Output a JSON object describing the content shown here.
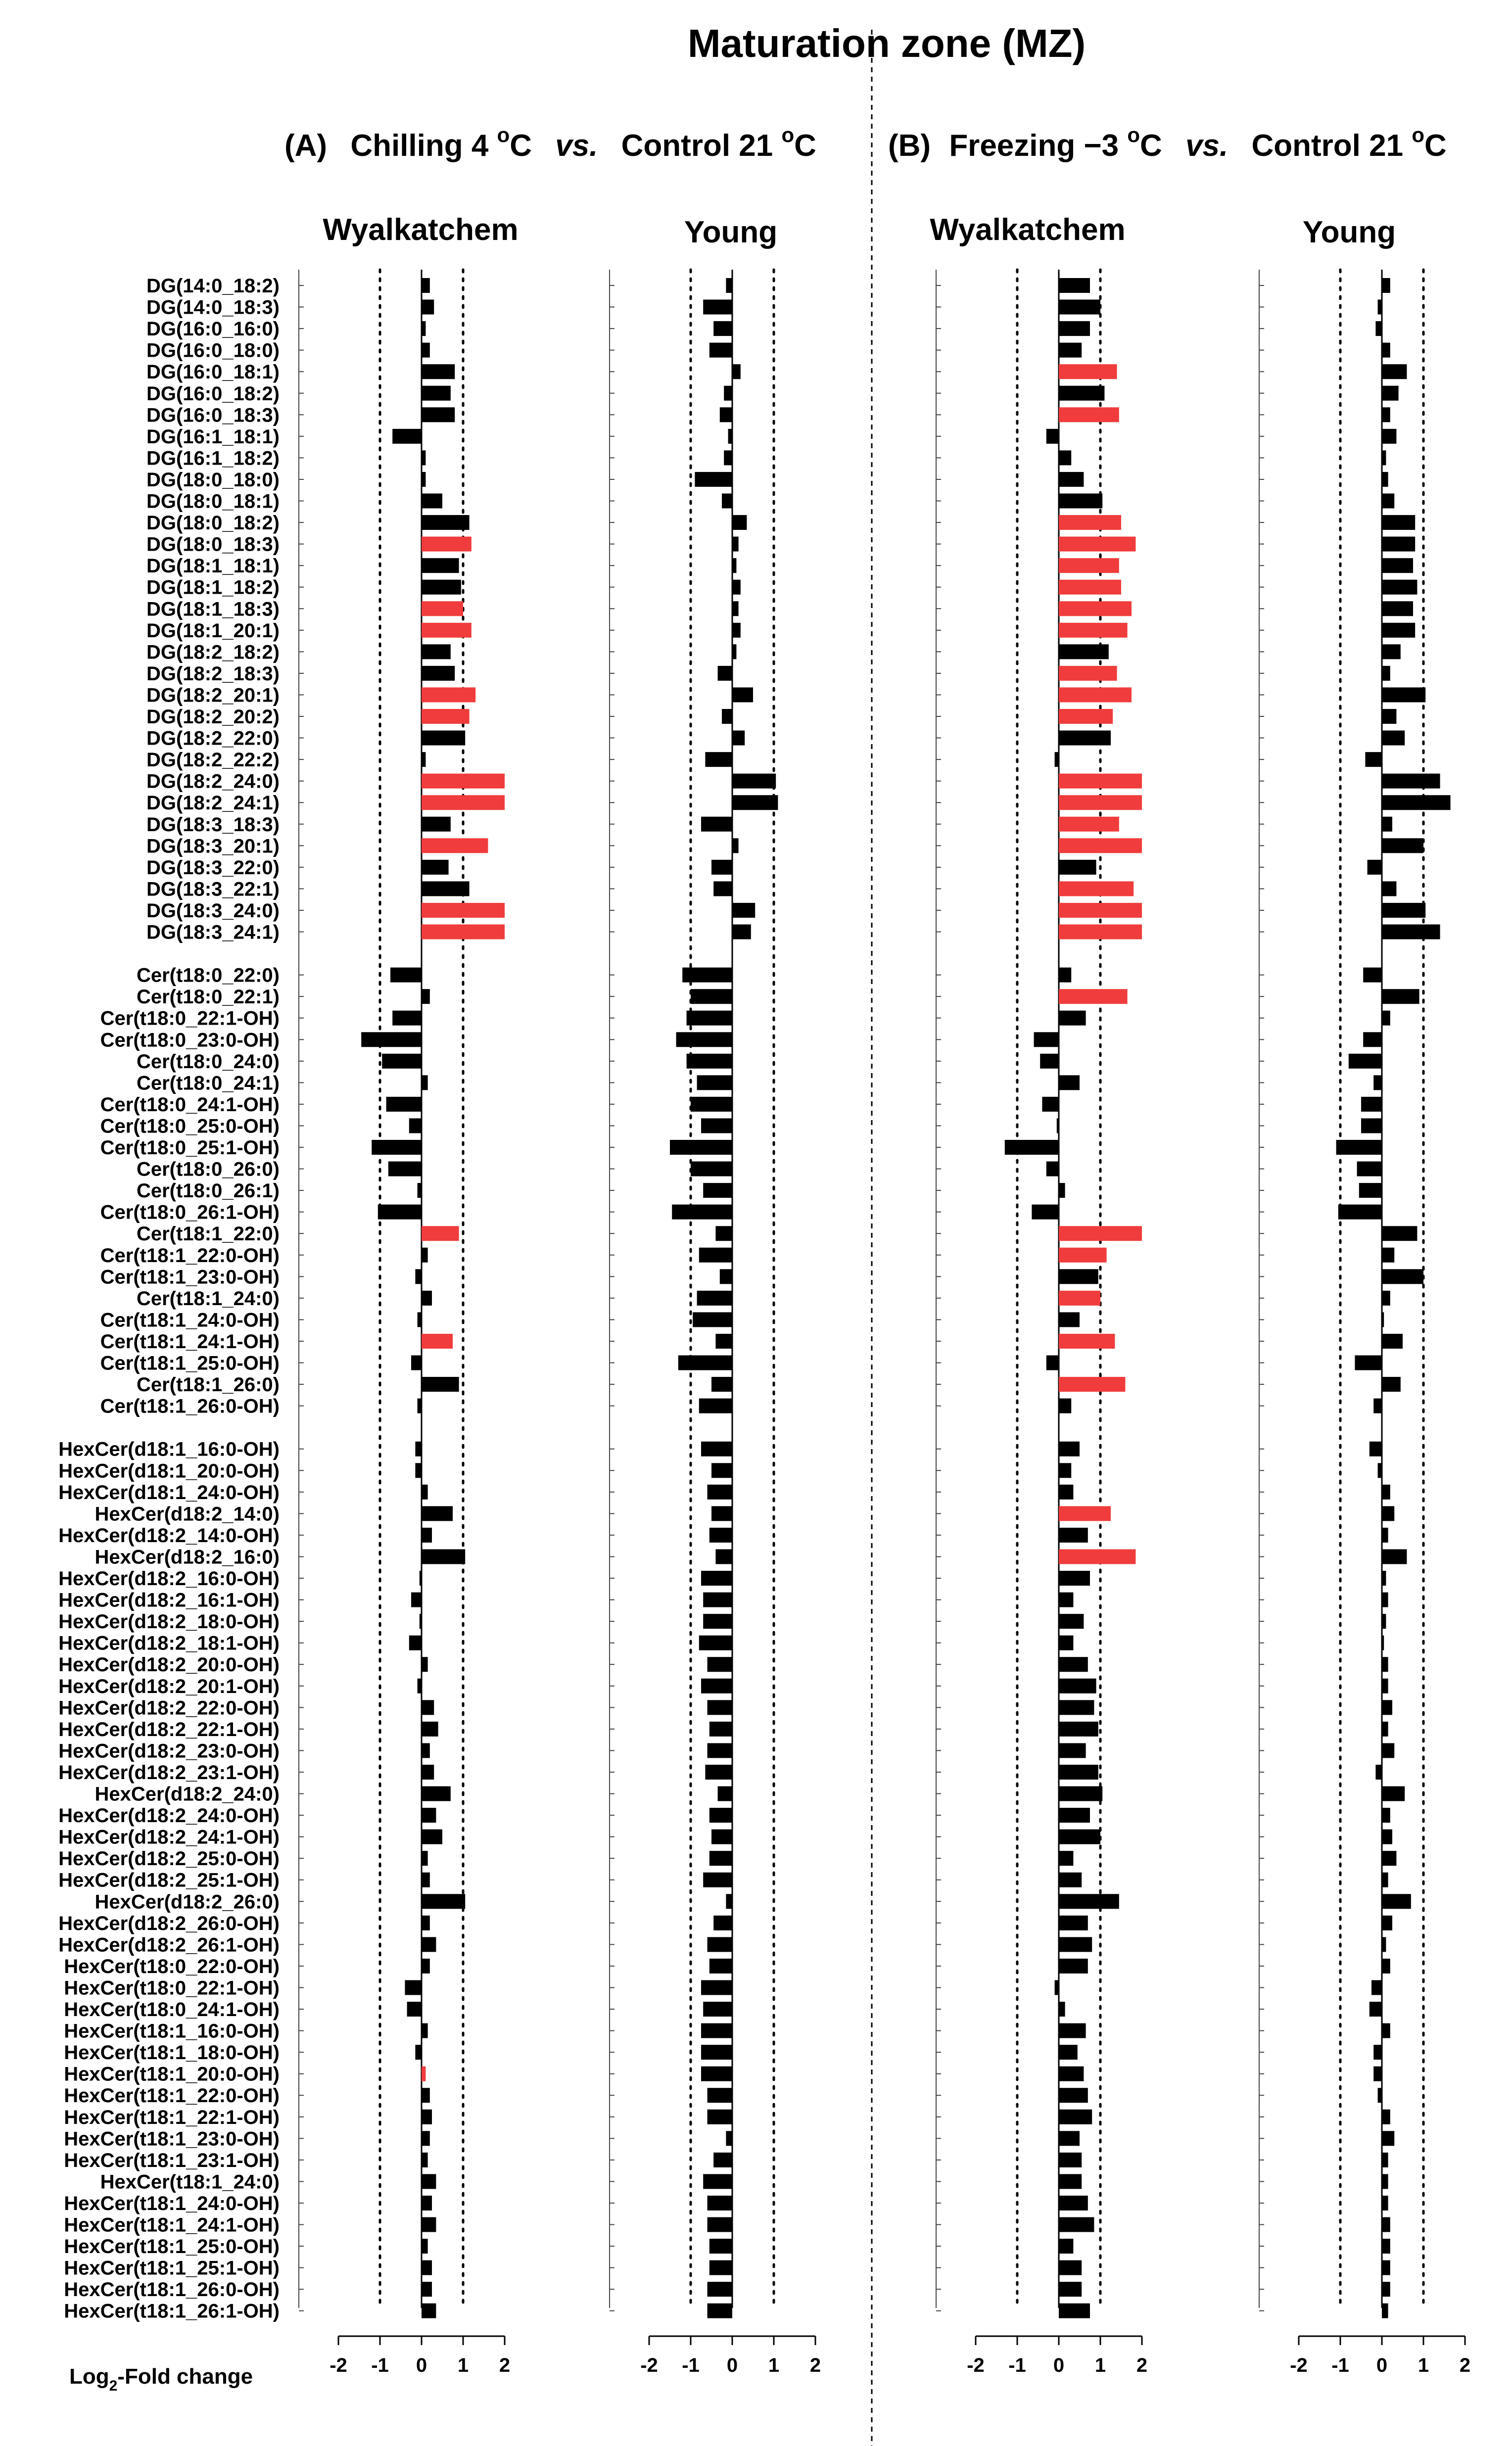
{
  "title": "Maturation zone (MZ)",
  "panels": [
    {
      "letter": "(A)",
      "treat": "Chilling 4 ",
      "deg": "o",
      "unit": "C",
      "vs": "vs.",
      "control": "Control 21 ",
      "deg2": "o",
      "unit2": "C"
    },
    {
      "letter": "(B)",
      "treat": "Freezing −3 ",
      "deg": "o",
      "unit": "C",
      "vs": "vs.",
      "control": "Control 21 ",
      "deg2": "o",
      "unit2": "C"
    }
  ],
  "columns": [
    "Wyalkatchem",
    "Young",
    "Wyalkatchem",
    "Young"
  ],
  "xlabel": {
    "main": "Log",
    "sub": "2",
    "rest": "-Fold change"
  },
  "chart_data": {
    "type": "bar",
    "orientation": "horizontal",
    "xlim": [
      -2,
      2
    ],
    "xticks": [
      "-2",
      "-1",
      "0",
      "1",
      "2"
    ],
    "reference_lines": [
      -1,
      1
    ],
    "colors": {
      "significant": "#f03c3c",
      "normal": "#000000"
    },
    "categories": [
      "DG(14:0_18:2)",
      "DG(14:0_18:3)",
      "DG(16:0_16:0)",
      "DG(16:0_18:0)",
      "DG(16:0_18:1)",
      "DG(16:0_18:2)",
      "DG(16:0_18:3)",
      "DG(16:1_18:1)",
      "DG(16:1_18:2)",
      "DG(18:0_18:0)",
      "DG(18:0_18:1)",
      "DG(18:0_18:2)",
      "DG(18:0_18:3)",
      "DG(18:1_18:1)",
      "DG(18:1_18:2)",
      "DG(18:1_18:3)",
      "DG(18:1_20:1)",
      "DG(18:2_18:2)",
      "DG(18:2_18:3)",
      "DG(18:2_20:1)",
      "DG(18:2_20:2)",
      "DG(18:2_22:0)",
      "DG(18:2_22:2)",
      "DG(18:2_24:0)",
      "DG(18:2_24:1)",
      "DG(18:3_18:3)",
      "DG(18:3_20:1)",
      "DG(18:3_22:0)",
      "DG(18:3_22:1)",
      "DG(18:3_24:0)",
      "DG(18:3_24:1)",
      "",
      "Cer(t18:0_22:0)",
      "Cer(t18:0_22:1)",
      "Cer(t18:0_22:1-OH)",
      "Cer(t18:0_23:0-OH)",
      "Cer(t18:0_24:0)",
      "Cer(t18:0_24:1)",
      "Cer(t18:0_24:1-OH)",
      "Cer(t18:0_25:0-OH)",
      "Cer(t18:0_25:1-OH)",
      "Cer(t18:0_26:0)",
      "Cer(t18:0_26:1)",
      "Cer(t18:0_26:1-OH)",
      "Cer(t18:1_22:0)",
      "Cer(t18:1_22:0-OH)",
      "Cer(t18:1_23:0-OH)",
      "Cer(t18:1_24:0)",
      "Cer(t18:1_24:0-OH)",
      "Cer(t18:1_24:1-OH)",
      "Cer(t18:1_25:0-OH)",
      "Cer(t18:1_26:0)",
      "Cer(t18:1_26:0-OH)",
      "",
      "HexCer(d18:1_16:0-OH)",
      "HexCer(d18:1_20:0-OH)",
      "HexCer(d18:1_24:0-OH)",
      "HexCer(d18:2_14:0)",
      "HexCer(d18:2_14:0-OH)",
      "HexCer(d18:2_16:0)",
      "HexCer(d18:2_16:0-OH)",
      "HexCer(d18:2_16:1-OH)",
      "HexCer(d18:2_18:0-OH)",
      "HexCer(d18:2_18:1-OH)",
      "HexCer(d18:2_20:0-OH)",
      "HexCer(d18:2_20:1-OH)",
      "HexCer(d18:2_22:0-OH)",
      "HexCer(d18:2_22:1-OH)",
      "HexCer(d18:2_23:0-OH)",
      "HexCer(d18:2_23:1-OH)",
      "HexCer(d18:2_24:0)",
      "HexCer(d18:2_24:0-OH)",
      "HexCer(d18:2_24:1-OH)",
      "HexCer(d18:2_25:0-OH)",
      "HexCer(d18:2_25:1-OH)",
      "HexCer(d18:2_26:0)",
      "HexCer(d18:2_26:0-OH)",
      "HexCer(d18:2_26:1-OH)",
      "HexCer(t18:0_22:0-OH)",
      "HexCer(t18:0_22:1-OH)",
      "HexCer(t18:0_24:1-OH)",
      "HexCer(t18:1_16:0-OH)",
      "HexCer(t18:1_18:0-OH)",
      "HexCer(t18:1_20:0-OH)",
      "HexCer(t18:1_22:0-OH)",
      "HexCer(t18:1_22:1-OH)",
      "HexCer(t18:1_23:0-OH)",
      "HexCer(t18:1_23:1-OH)",
      "HexCer(t18:1_24:0)",
      "HexCer(t18:1_24:0-OH)",
      "HexCer(t18:1_24:1-OH)",
      "HexCer(t18:1_25:0-OH)",
      "HexCer(t18:1_25:1-OH)",
      "HexCer(t18:1_26:0-OH)",
      "HexCer(t18:1_26:1-OH)"
    ],
    "series": [
      {
        "values": [
          0.2,
          0.3,
          0.1,
          0.2,
          0.8,
          0.7,
          0.8,
          -0.7,
          0.1,
          0.1,
          0.5,
          1.15,
          1.2,
          0.9,
          0.95,
          1.0,
          1.2,
          0.7,
          0.8,
          1.3,
          1.15,
          1.05,
          0.1,
          2.0,
          2.0,
          0.7,
          1.6,
          0.65,
          1.15,
          2.0,
          2.0,
          null,
          -0.75,
          0.2,
          -0.7,
          -1.45,
          -0.95,
          0.15,
          -0.85,
          -0.3,
          -1.2,
          -0.8,
          -0.1,
          -1.05,
          0.9,
          0.15,
          -0.15,
          0.25,
          -0.1,
          0.75,
          -0.25,
          0.9,
          -0.1,
          null,
          -0.15,
          -0.15,
          0.15,
          0.75,
          0.25,
          1.05,
          -0.05,
          -0.25,
          -0.05,
          -0.3,
          0.15,
          -0.1,
          0.3,
          0.4,
          0.2,
          0.3,
          0.7,
          0.35,
          0.5,
          0.15,
          0.2,
          1.05,
          0.2,
          0.35,
          0.2,
          -0.4,
          -0.35,
          0.15,
          -0.15,
          0.1,
          0.2,
          0.25,
          0.2,
          0.15,
          0.35,
          0.25,
          0.35,
          0.15,
          0.25,
          0.25,
          0.35
        ],
        "significant": [
          12,
          15,
          16,
          19,
          20,
          23,
          24,
          26,
          29,
          30,
          44,
          49,
          83
        ]
      },
      {
        "values": [
          -0.15,
          -0.7,
          -0.45,
          -0.55,
          0.2,
          -0.2,
          -0.3,
          -0.1,
          -0.2,
          -0.9,
          -0.25,
          0.35,
          0.15,
          0.1,
          0.2,
          0.15,
          0.2,
          0.1,
          -0.35,
          0.5,
          -0.25,
          0.3,
          -0.65,
          1.05,
          1.1,
          -0.75,
          0.15,
          -0.5,
          -0.45,
          0.55,
          0.45,
          null,
          -1.2,
          -1.0,
          -1.1,
          -1.35,
          -1.1,
          -0.85,
          -1.0,
          -0.75,
          -1.5,
          -1.0,
          -0.7,
          -1.45,
          -0.4,
          -0.8,
          -0.3,
          -0.85,
          -0.95,
          -0.4,
          -1.3,
          -0.5,
          -0.8,
          null,
          -0.75,
          -0.5,
          -0.6,
          -0.5,
          -0.55,
          -0.4,
          -0.75,
          -0.7,
          -0.7,
          -0.8,
          -0.6,
          -0.75,
          -0.6,
          -0.55,
          -0.6,
          -0.65,
          -0.35,
          -0.55,
          -0.5,
          -0.55,
          -0.7,
          -0.15,
          -0.45,
          -0.6,
          -0.55,
          -0.75,
          -0.7,
          -0.75,
          -0.75,
          -0.75,
          -0.6,
          -0.6,
          -0.15,
          -0.45,
          -0.7,
          -0.6,
          -0.6,
          -0.55,
          -0.55,
          -0.6,
          -0.6
        ],
        "significant": []
      },
      {
        "values": [
          0.75,
          1.0,
          0.75,
          0.55,
          1.4,
          1.1,
          1.45,
          -0.3,
          0.3,
          0.6,
          1.05,
          1.5,
          1.85,
          1.45,
          1.5,
          1.75,
          1.65,
          1.2,
          1.4,
          1.75,
          1.3,
          1.25,
          -0.1,
          2.0,
          2.0,
          1.45,
          2.0,
          0.9,
          1.8,
          2.0,
          2.0,
          null,
          0.3,
          1.65,
          0.65,
          -0.6,
          -0.45,
          0.5,
          -0.4,
          -0.05,
          -1.3,
          -0.3,
          0.15,
          -0.65,
          2.0,
          1.15,
          0.95,
          1.0,
          0.5,
          1.35,
          -0.3,
          1.6,
          0.3,
          null,
          0.5,
          0.3,
          0.35,
          1.25,
          0.7,
          1.85,
          0.75,
          0.35,
          0.6,
          0.35,
          0.7,
          0.9,
          0.85,
          0.95,
          0.65,
          0.95,
          1.05,
          0.75,
          1.0,
          0.35,
          0.55,
          1.45,
          0.7,
          0.8,
          0.7,
          -0.1,
          0.15,
          0.65,
          0.45,
          0.6,
          0.7,
          0.8,
          0.5,
          0.55,
          0.55,
          0.7,
          0.85,
          0.35,
          0.55,
          0.55,
          0.75
        ],
        "significant": [
          4,
          6,
          11,
          12,
          13,
          14,
          15,
          16,
          18,
          19,
          20,
          23,
          24,
          25,
          26,
          28,
          29,
          30,
          33,
          44,
          45,
          47,
          49,
          51,
          57,
          59
        ]
      },
      {
        "values": [
          0.2,
          -0.1,
          -0.15,
          0.2,
          0.6,
          0.4,
          0.2,
          0.35,
          0.1,
          0.15,
          0.3,
          0.8,
          0.8,
          0.75,
          0.85,
          0.75,
          0.8,
          0.45,
          0.2,
          1.05,
          0.35,
          0.55,
          -0.4,
          1.4,
          1.65,
          0.25,
          1.0,
          -0.35,
          0.35,
          1.05,
          1.4,
          null,
          -0.45,
          0.9,
          0.2,
          -0.45,
          -0.8,
          -0.2,
          -0.5,
          -0.5,
          -1.1,
          -0.6,
          -0.55,
          -1.05,
          0.85,
          0.3,
          1.0,
          0.2,
          0.05,
          0.5,
          -0.65,
          0.45,
          -0.2,
          null,
          -0.3,
          -0.1,
          0.2,
          0.3,
          0.15,
          0.6,
          0.1,
          0.15,
          0.1,
          0.05,
          0.15,
          0.15,
          0.25,
          0.15,
          0.3,
          -0.15,
          0.55,
          0.2,
          0.25,
          0.35,
          0.15,
          0.7,
          0.25,
          0.1,
          0.2,
          -0.25,
          -0.3,
          0.2,
          -0.2,
          -0.2,
          -0.1,
          0.2,
          0.3,
          0.15,
          0.15,
          0.15,
          0.2,
          0.2,
          0.2,
          0.2,
          0.15
        ],
        "significant": []
      }
    ]
  }
}
